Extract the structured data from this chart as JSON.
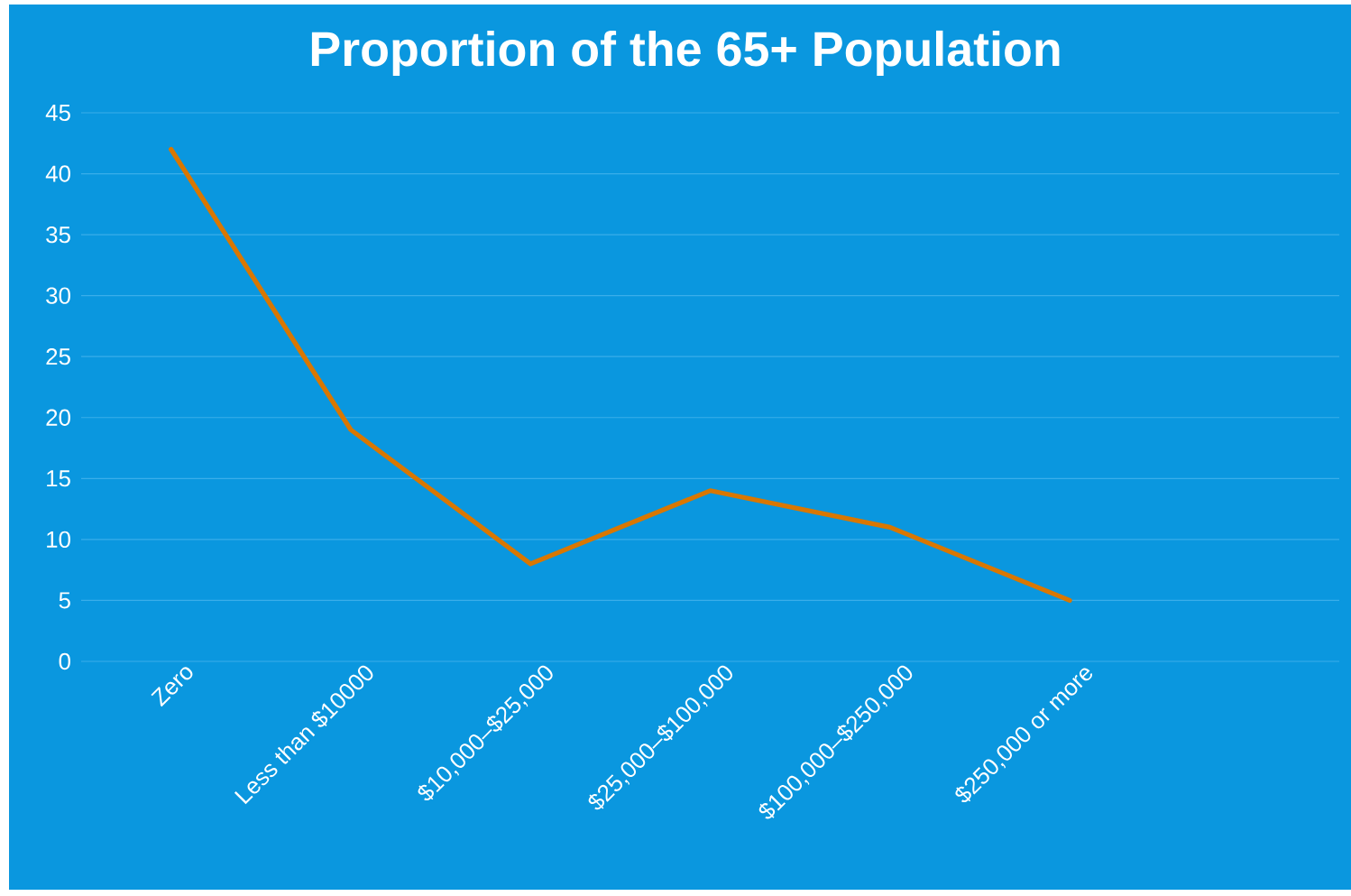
{
  "chart_data": {
    "type": "line",
    "title": "Proportion of the 65+ Population",
    "categories": [
      "Zero",
      "Less than $10000",
      "$10,000–$25,000",
      "$25,000–$100,000",
      "$100,000–$250,000",
      "$250,000 or more",
      null
    ],
    "values": [
      42,
      19,
      8,
      14,
      11,
      5,
      null
    ],
    "color": "#d97700",
    "ylim": [
      0,
      45
    ],
    "yticks": [
      0,
      5,
      10,
      15,
      20,
      25,
      30,
      35,
      40,
      45
    ],
    "grid": "y"
  }
}
